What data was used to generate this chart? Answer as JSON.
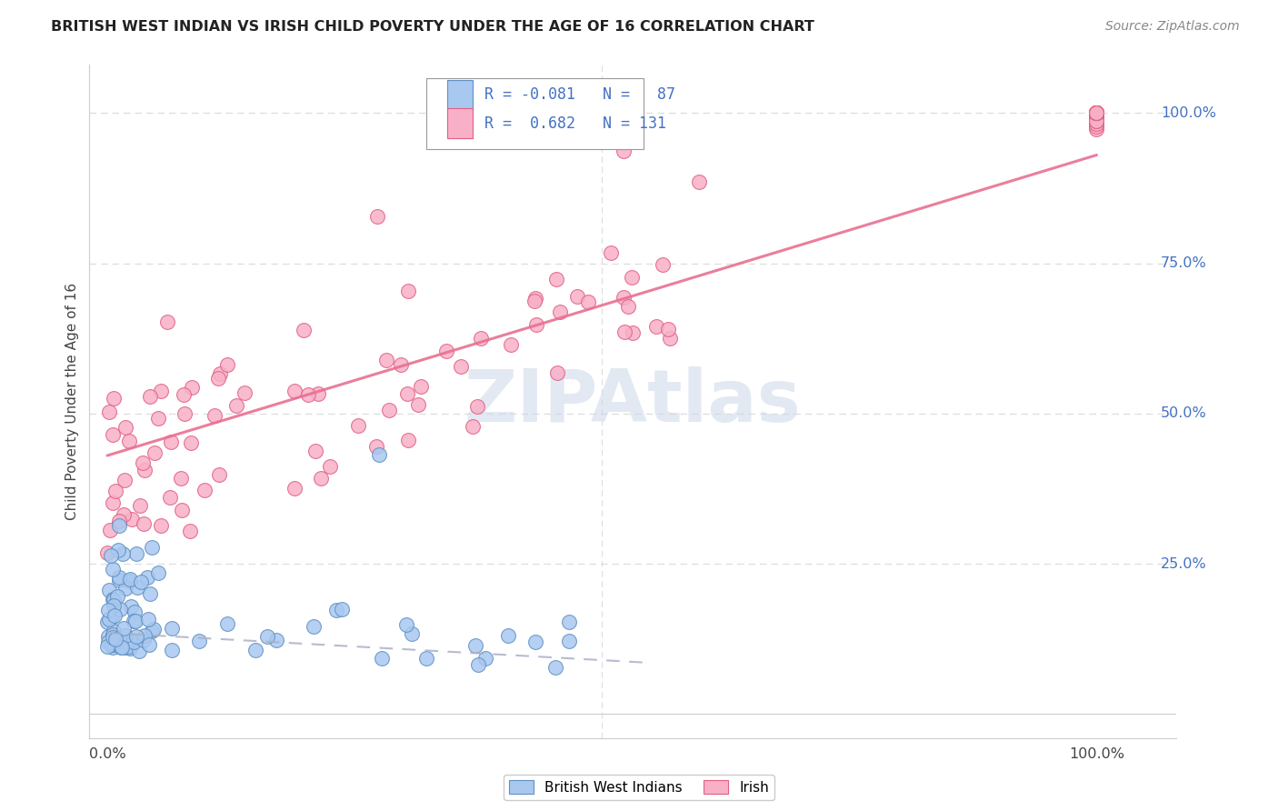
{
  "title": "BRITISH WEST INDIAN VS IRISH CHILD POVERTY UNDER THE AGE OF 16 CORRELATION CHART",
  "source": "Source: ZipAtlas.com",
  "ylabel": "Child Poverty Under the Age of 16",
  "bwi_color": "#a8c8f0",
  "bwi_edge_color": "#6090c0",
  "irish_color": "#f8b0c8",
  "irish_edge_color": "#e06080",
  "irish_line_color": "#e87090",
  "bwi_line_color": "#8899bb",
  "background_color": "#ffffff",
  "watermark_color": "#ccd8e8",
  "right_label_color": "#4472c4",
  "title_color": "#222222",
  "source_color": "#888888",
  "grid_color": "#dddddd",
  "spine_color": "#cccccc"
}
